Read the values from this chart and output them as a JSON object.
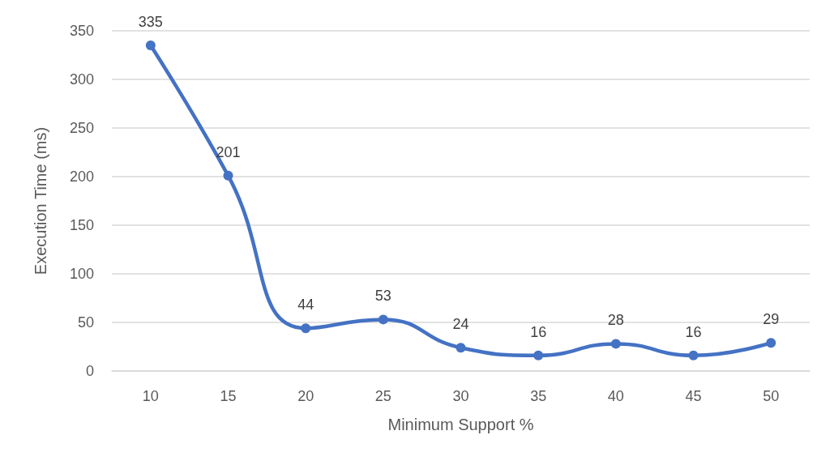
{
  "chart_data": {
    "type": "line",
    "xlabel": "Minimum Support %",
    "ylabel": "Execution Time (ms)",
    "categories": [
      "10",
      "15",
      "20",
      "25",
      "30",
      "35",
      "40",
      "45",
      "50"
    ],
    "series": [
      {
        "color": "#4472c4",
        "values": [
          335,
          201,
          44,
          53,
          24,
          16,
          28,
          16,
          29
        ]
      }
    ],
    "ylim": [
      0,
      350
    ],
    "yticks": [
      0,
      50,
      100,
      150,
      200,
      250,
      300,
      350
    ],
    "grid": "y",
    "marker": "circle",
    "line_style": "solid",
    "data_labels": true
  }
}
